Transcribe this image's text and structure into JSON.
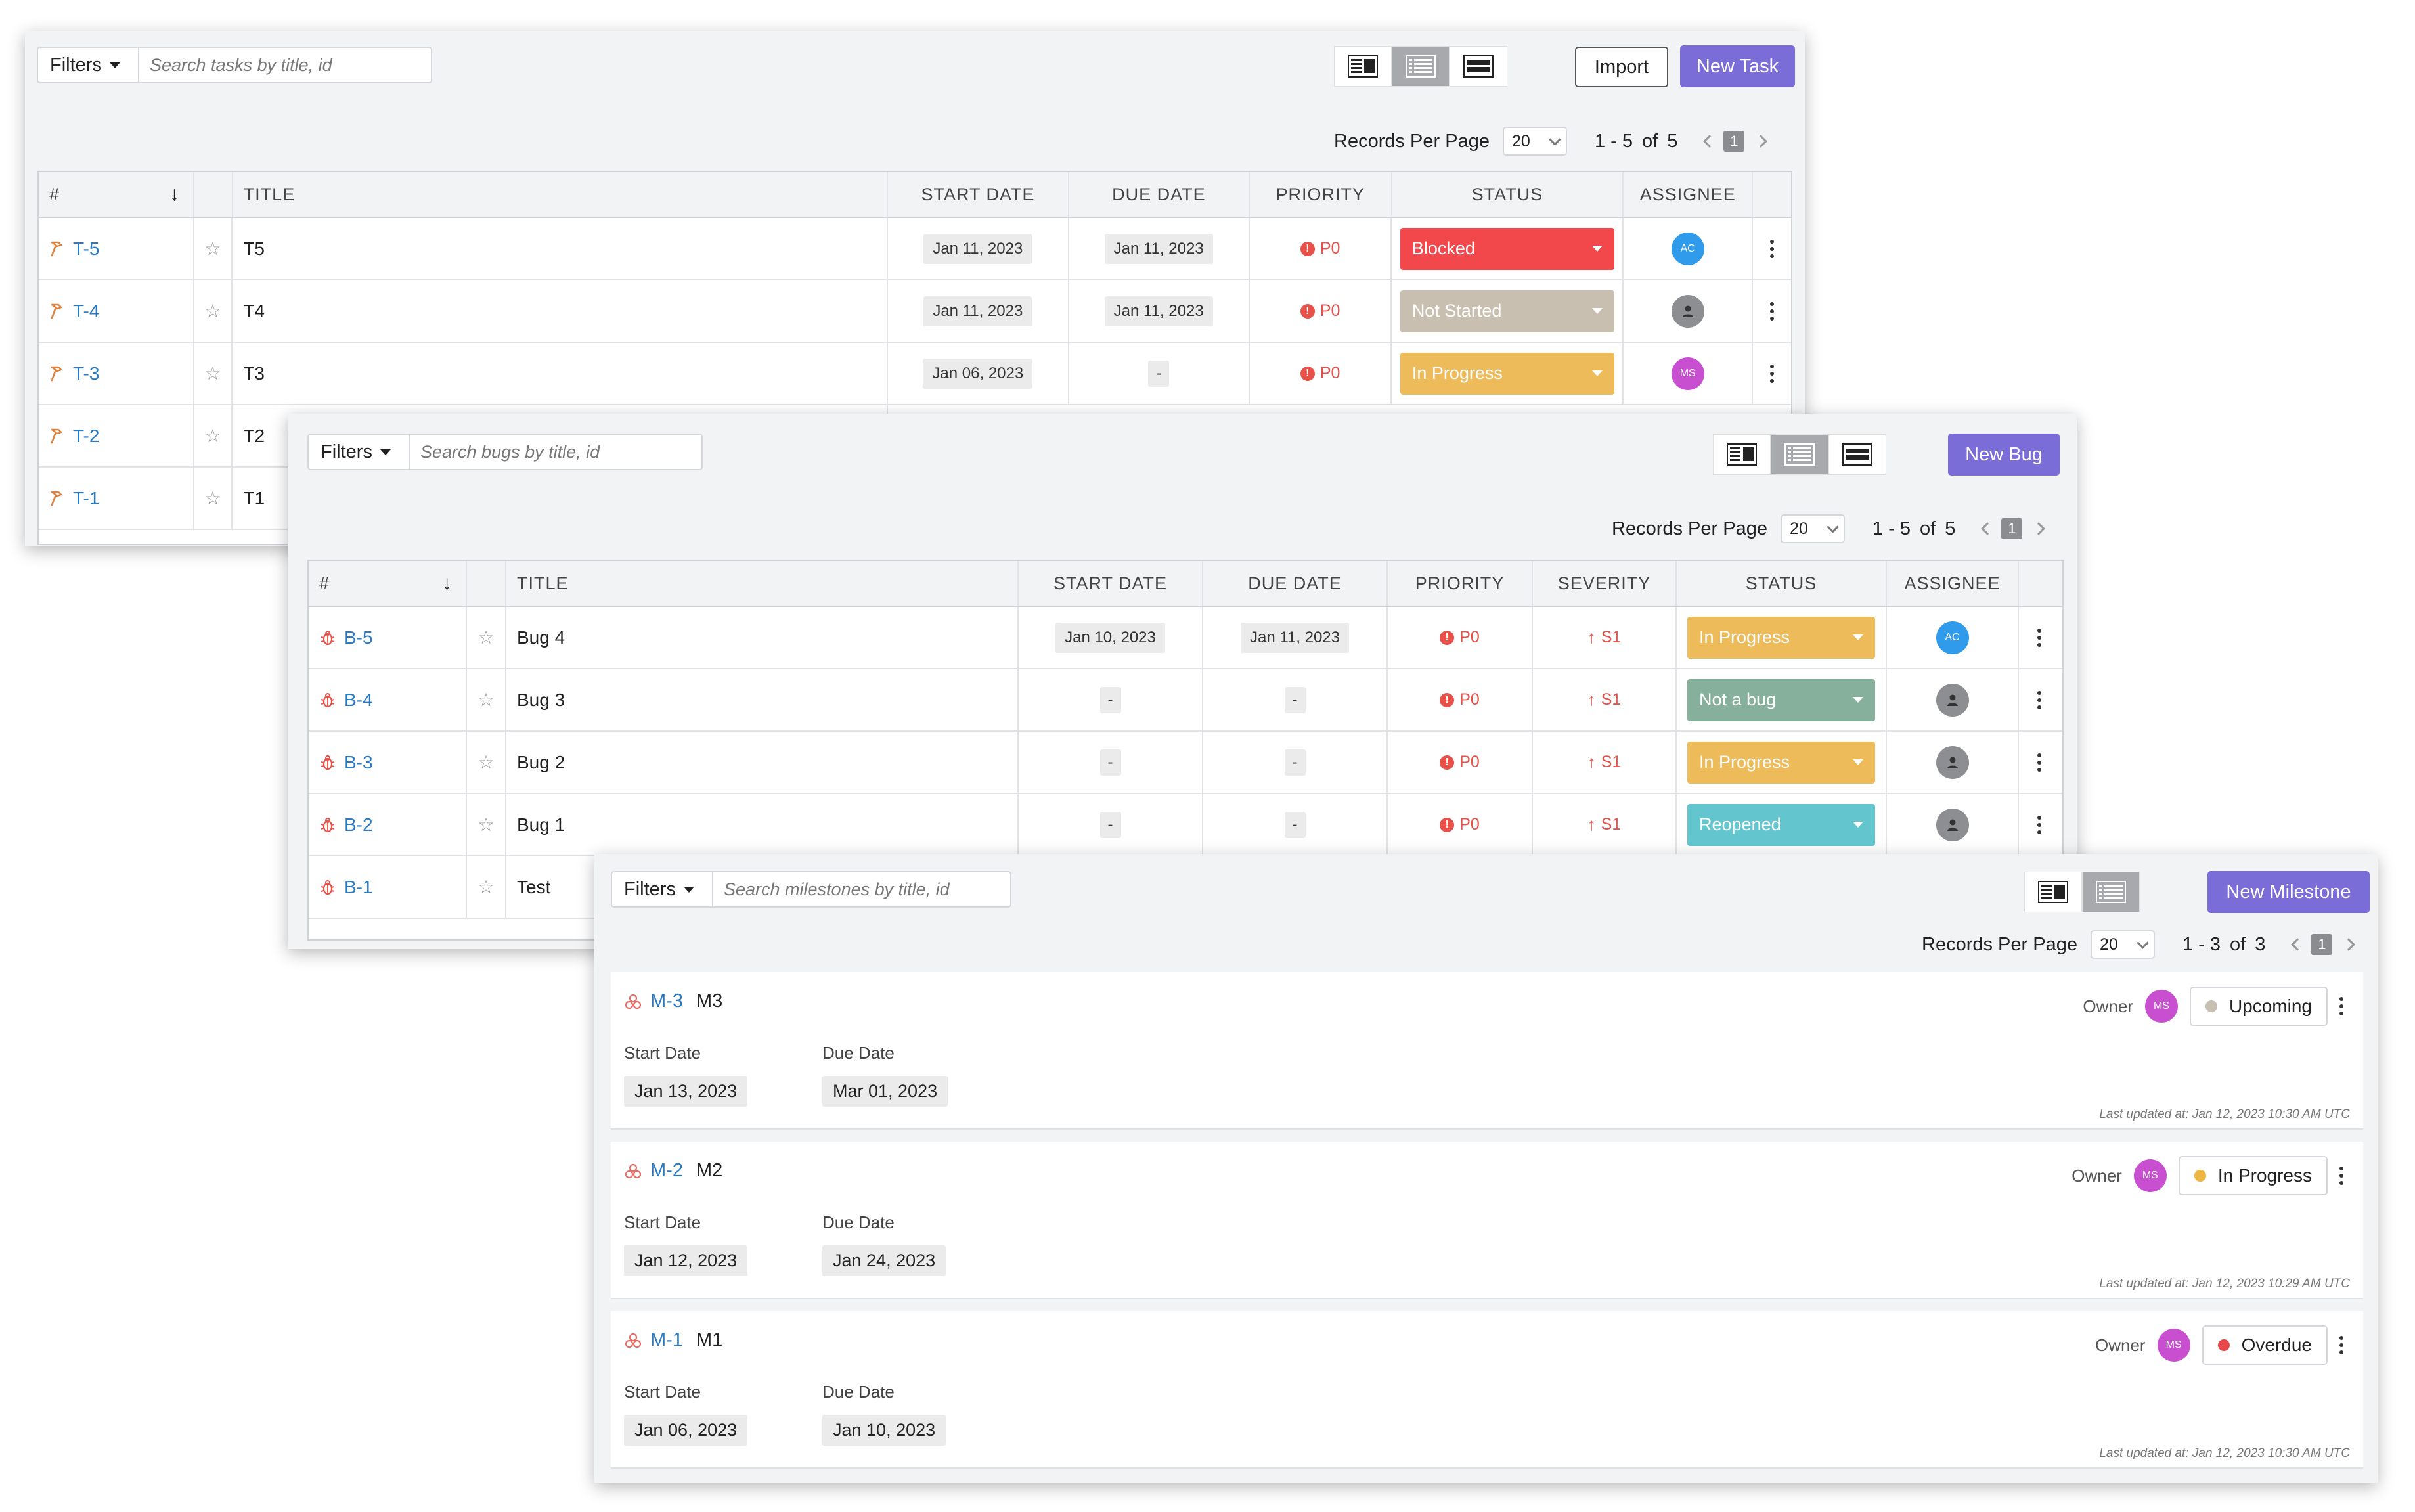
{
  "tasks_panel": {
    "filters_label": "Filters",
    "search_placeholder": "Search tasks by title, id",
    "import_label": "Import",
    "new_label": "New Task",
    "records_per_page_label": "Records Per Page",
    "records_per_page_value": "20",
    "range_text": "1 - 5",
    "of_text": "of",
    "total": "5",
    "current_page": "1",
    "columns": [
      "#",
      "",
      "TITLE",
      "START DATE",
      "DUE DATE",
      "PRIORITY",
      "STATUS",
      "ASSIGNEE",
      ""
    ],
    "rows": [
      {
        "id": "T-5",
        "title": "T5",
        "start": "Jan 11, 2023",
        "due": "Jan 11, 2023",
        "priority": "P0",
        "status": "Blocked",
        "status_color": "#f2474b",
        "assignee": "AC",
        "assignee_color": "#2f9bea"
      },
      {
        "id": "T-4",
        "title": "T4",
        "start": "Jan 11, 2023",
        "due": "Jan 11, 2023",
        "priority": "P0",
        "status": "Not Started",
        "status_color": "#c8bfb0",
        "assignee": "",
        "assignee_color": "#8d8e91"
      },
      {
        "id": "T-3",
        "title": "T3",
        "start": "Jan 06, 2023",
        "due": "-",
        "priority": "P0",
        "status": "In Progress",
        "status_color": "#eebb5a",
        "assignee": "MS",
        "assignee_color": "#c94fd1"
      },
      {
        "id": "T-2",
        "title": "T2"
      },
      {
        "id": "T-1",
        "title": "T1"
      }
    ]
  },
  "bugs_panel": {
    "filters_label": "Filters",
    "search_placeholder": "Search bugs by title, id",
    "new_label": "New Bug",
    "records_per_page_label": "Records Per Page",
    "records_per_page_value": "20",
    "range_text": "1 - 5",
    "of_text": "of",
    "total": "5",
    "current_page": "1",
    "columns": [
      "#",
      "",
      "TITLE",
      "START DATE",
      "DUE DATE",
      "PRIORITY",
      "SEVERITY",
      "STATUS",
      "ASSIGNEE",
      ""
    ],
    "rows": [
      {
        "id": "B-5",
        "title": "Bug 4",
        "start": "Jan 10, 2023",
        "due": "Jan 11, 2023",
        "priority": "P0",
        "severity": "S1",
        "status": "In Progress",
        "status_color": "#eebb5a",
        "assignee": "AC",
        "assignee_color": "#2f9bea"
      },
      {
        "id": "B-4",
        "title": "Bug 3",
        "start": "-",
        "due": "-",
        "priority": "P0",
        "severity": "S1",
        "status": "Not a bug",
        "status_color": "#86b09c",
        "assignee": "",
        "assignee_color": "#8d8e91"
      },
      {
        "id": "B-3",
        "title": "Bug 2",
        "start": "-",
        "due": "-",
        "priority": "P0",
        "severity": "S1",
        "status": "In Progress",
        "status_color": "#eebb5a",
        "assignee": "",
        "assignee_color": "#8d8e91"
      },
      {
        "id": "B-2",
        "title": "Bug 1",
        "start": "-",
        "due": "-",
        "priority": "P0",
        "severity": "S1",
        "status": "Reopened",
        "status_color": "#63c6cf",
        "assignee": "",
        "assignee_color": "#8d8e91"
      },
      {
        "id": "B-1",
        "title": "Test"
      }
    ]
  },
  "milestones_panel": {
    "filters_label": "Filters",
    "search_placeholder": "Search milestones by title, id",
    "new_label": "New Milestone",
    "records_per_page_label": "Records Per Page",
    "records_per_page_value": "20",
    "range_text": "1 - 3",
    "of_text": "of",
    "total": "3",
    "current_page": "1",
    "start_date_label": "Start Date",
    "due_date_label": "Due Date",
    "owner_label": "Owner",
    "items": [
      {
        "id": "M-3",
        "title": "M3",
        "start": "Jan 13, 2023",
        "due": "Mar 01, 2023",
        "owner": "MS",
        "status": "Upcoming",
        "status_dot": "#c7bfb1",
        "updated": "Last updated at: Jan 12, 2023 10:30 AM UTC"
      },
      {
        "id": "M-2",
        "title": "M2",
        "start": "Jan 12, 2023",
        "due": "Jan 24, 2023",
        "owner": "MS",
        "status": "In Progress",
        "status_dot": "#eeb640",
        "updated": "Last updated at: Jan 12, 2023 10:29 AM UTC"
      },
      {
        "id": "M-1",
        "title": "M1",
        "start": "Jan 06, 2023",
        "due": "Jan 10, 2023",
        "owner": "MS",
        "status": "Overdue",
        "status_dot": "#e8484a",
        "updated": "Last updated at: Jan 12, 2023 10:30 AM UTC"
      }
    ]
  }
}
